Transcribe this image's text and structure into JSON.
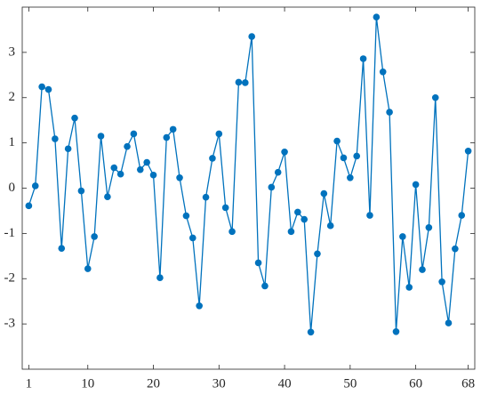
{
  "chart_data": {
    "type": "line",
    "x": [
      1,
      2,
      3,
      4,
      5,
      6,
      7,
      8,
      9,
      10,
      11,
      12,
      13,
      14,
      15,
      16,
      17,
      18,
      19,
      20,
      21,
      22,
      23,
      24,
      25,
      26,
      27,
      28,
      29,
      30,
      31,
      32,
      33,
      34,
      35,
      36,
      37,
      38,
      39,
      40,
      41,
      42,
      43,
      44,
      45,
      46,
      47,
      48,
      49,
      50,
      51,
      52,
      53,
      54,
      55,
      56,
      57,
      58,
      59,
      60,
      61,
      62,
      63,
      64,
      65,
      66,
      67,
      68
    ],
    "series": [
      {
        "color": "#0072bd",
        "values": [
          -0.39,
          0.05,
          2.24,
          2.18,
          1.09,
          -1.33,
          0.87,
          1.55,
          -0.06,
          -1.78,
          -1.07,
          1.15,
          -0.19,
          0.45,
          0.31,
          0.92,
          1.2,
          0.41,
          0.57,
          0.29,
          -1.98,
          1.12,
          1.3,
          0.23,
          -0.61,
          -1.1,
          -2.6,
          -0.2,
          0.66,
          1.2,
          -0.43,
          -0.96,
          2.34,
          2.33,
          3.35,
          -1.65,
          -2.16,
          0.02,
          0.35,
          0.8,
          -0.96,
          -0.53,
          -0.69,
          -3.18,
          -1.45,
          -0.12,
          -0.83,
          1.04,
          0.67,
          0.23,
          0.71,
          2.86,
          -0.6,
          3.78,
          2.57,
          1.68,
          -3.17,
          -1.07,
          -2.19,
          0.08,
          -1.8,
          -0.87,
          2.0,
          -2.07,
          -2.98,
          -1.34,
          -0.6,
          0.82
        ]
      }
    ],
    "xlim": [
      0,
      69
    ],
    "ylim": [
      -4,
      4
    ],
    "xticks": [
      1,
      10,
      20,
      30,
      40,
      50,
      60,
      68
    ],
    "yticks": [
      -3,
      -2,
      -1,
      0,
      1,
      2,
      3
    ],
    "grid": false
  }
}
